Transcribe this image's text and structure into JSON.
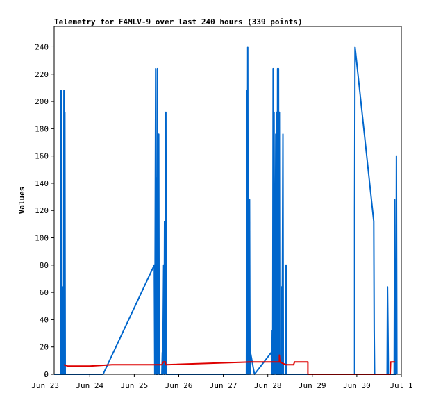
{
  "chart_data": {
    "type": "line",
    "title": "Telemetry for F4MLV-9 over last 240 hours (339 points)",
    "xlabel": "",
    "ylabel": "Values",
    "xlim": [
      23.2,
      31.0
    ],
    "ylim": [
      0,
      255
    ],
    "y_ticks": [
      0,
      20,
      40,
      60,
      80,
      100,
      120,
      140,
      160,
      180,
      200,
      220,
      240
    ],
    "x_ticks": [
      {
        "value": 23.0,
        "label": "Jun 23"
      },
      {
        "value": 24.0,
        "label": "Jun 24"
      },
      {
        "value": 25.0,
        "label": "Jun 25"
      },
      {
        "value": 26.0,
        "label": "Jun 26"
      },
      {
        "value": 27.0,
        "label": "Jun 27"
      },
      {
        "value": 28.0,
        "label": "Jun 28"
      },
      {
        "value": 29.0,
        "label": "Jun 29"
      },
      {
        "value": 30.0,
        "label": "Jun 30"
      },
      {
        "value": 31.0,
        "label": "Jul 1"
      }
    ],
    "grid": false,
    "legend": "none",
    "series": [
      {
        "color": "#0066cc",
        "points": [
          [
            23.2,
            0
          ],
          [
            23.34,
            0
          ],
          [
            23.34,
            208
          ],
          [
            23.35,
            0
          ],
          [
            23.36,
            208
          ],
          [
            23.37,
            0
          ],
          [
            23.4,
            0
          ],
          [
            23.4,
            64
          ],
          [
            23.41,
            0
          ],
          [
            23.42,
            208
          ],
          [
            23.43,
            0
          ],
          [
            23.44,
            192
          ],
          [
            23.45,
            0
          ],
          [
            24.3,
            0
          ],
          [
            25.45,
            80
          ],
          [
            25.46,
            0
          ],
          [
            25.48,
            224
          ],
          [
            25.49,
            0
          ],
          [
            25.5,
            144
          ],
          [
            25.51,
            0
          ],
          [
            25.52,
            224
          ],
          [
            25.53,
            0
          ],
          [
            25.55,
            176
          ],
          [
            25.56,
            0
          ],
          [
            25.62,
            0
          ],
          [
            25.63,
            16
          ],
          [
            25.64,
            0
          ],
          [
            25.66,
            80
          ],
          [
            25.67,
            0
          ],
          [
            25.68,
            112
          ],
          [
            25.69,
            0
          ],
          [
            25.71,
            192
          ],
          [
            25.72,
            0
          ],
          [
            27.52,
            0
          ],
          [
            27.53,
            208
          ],
          [
            27.54,
            0
          ],
          [
            27.55,
            240
          ],
          [
            27.56,
            0
          ],
          [
            27.57,
            96
          ],
          [
            27.58,
            0
          ],
          [
            27.59,
            128
          ],
          [
            27.6,
            0
          ],
          [
            27.61,
            16
          ],
          [
            27.7,
            0
          ],
          [
            28.08,
            16
          ],
          [
            28.09,
            0
          ],
          [
            28.1,
            32
          ],
          [
            28.11,
            0
          ],
          [
            28.12,
            224
          ],
          [
            28.13,
            0
          ],
          [
            28.14,
            192
          ],
          [
            28.15,
            56
          ],
          [
            28.16,
            0
          ],
          [
            28.18,
            176
          ],
          [
            28.19,
            0
          ],
          [
            28.2,
            192
          ],
          [
            28.21,
            0
          ],
          [
            28.22,
            224
          ],
          [
            28.23,
            0
          ],
          [
            28.24,
            224
          ],
          [
            28.25,
            0
          ],
          [
            28.26,
            192
          ],
          [
            28.27,
            0
          ],
          [
            28.3,
            0
          ],
          [
            28.31,
            64
          ],
          [
            28.32,
            0
          ],
          [
            28.34,
            176
          ],
          [
            28.35,
            0
          ],
          [
            28.4,
            0
          ],
          [
            28.41,
            80
          ],
          [
            28.42,
            0
          ],
          [
            29.95,
            0
          ],
          [
            29.95,
            120
          ],
          [
            29.96,
            240
          ],
          [
            30.38,
            112
          ],
          [
            30.39,
            32
          ],
          [
            30.4,
            0
          ],
          [
            30.68,
            0
          ],
          [
            30.69,
            64
          ],
          [
            30.7,
            32
          ],
          [
            30.71,
            0
          ],
          [
            30.84,
            0
          ],
          [
            30.85,
            128
          ],
          [
            30.86,
            0
          ],
          [
            30.87,
            64
          ],
          [
            30.88,
            0
          ],
          [
            30.89,
            160
          ],
          [
            30.9,
            0
          ]
        ]
      },
      {
        "color": "#dd0000",
        "points": [
          [
            23.42,
            7
          ],
          [
            23.5,
            6
          ],
          [
            24.0,
            6
          ],
          [
            24.5,
            7
          ],
          [
            25.0,
            7
          ],
          [
            25.5,
            7
          ],
          [
            25.62,
            7
          ],
          [
            25.65,
            9
          ],
          [
            25.7,
            9
          ],
          [
            25.7,
            7
          ],
          [
            25.72,
            7
          ],
          [
            27.62,
            9
          ],
          [
            28.0,
            9
          ],
          [
            28.26,
            9
          ],
          [
            28.26,
            14
          ],
          [
            28.27,
            9
          ],
          [
            28.4,
            7
          ],
          [
            28.52,
            7
          ],
          [
            28.58,
            7
          ],
          [
            28.6,
            9
          ],
          [
            28.9,
            9
          ],
          [
            28.9,
            0
          ],
          [
            29.0,
            0
          ],
          [
            30.75,
            0
          ],
          [
            30.76,
            9
          ],
          [
            30.86,
            9
          ]
        ]
      }
    ]
  }
}
